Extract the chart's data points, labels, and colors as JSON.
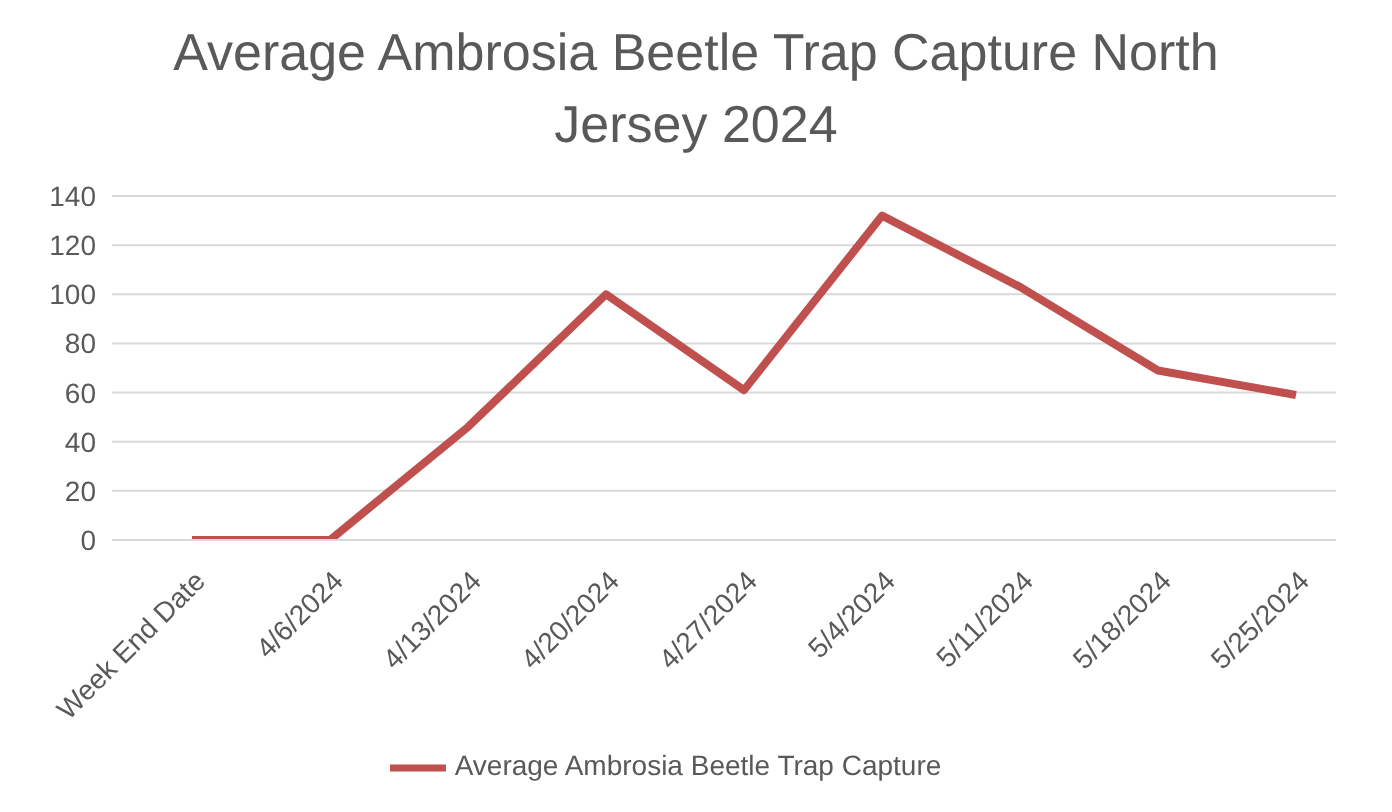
{
  "chart_data": {
    "type": "line",
    "title": "Average Ambrosia Beetle Trap Capture North Jersey 2024",
    "categories": [
      "Week End Date",
      "4/6/2024",
      "4/13/2024",
      "4/20/2024",
      "4/27/2024",
      "5/4/2024",
      "5/11/2024",
      "5/18/2024",
      "5/25/2024"
    ],
    "series": [
      {
        "name": "Average Ambrosia Beetle Trap Capture",
        "color": "#c0504d",
        "values": [
          0,
          0,
          46,
          100,
          61,
          132,
          103,
          69,
          59
        ]
      }
    ],
    "ylim": [
      0,
      140
    ],
    "yticks": [
      0,
      20,
      40,
      60,
      80,
      100,
      120,
      140
    ],
    "grid": "y",
    "legend": "bottom",
    "marker": "none",
    "line_style": "solid"
  }
}
